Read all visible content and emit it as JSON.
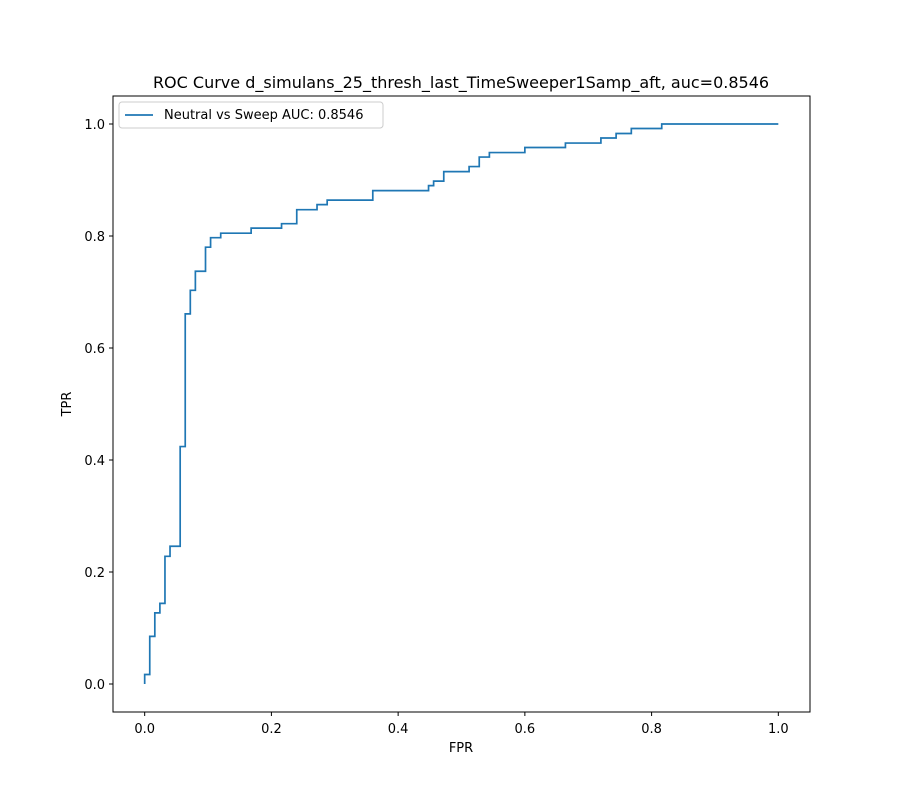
{
  "chart_data": {
    "type": "line",
    "title": "ROC Curve d_simulans_25_thresh_last_TimeSweeper1Samp_aft, auc=0.8546",
    "xlabel": "FPR",
    "ylabel": "TPR",
    "xlim": [
      -0.05,
      1.05
    ],
    "ylim": [
      -0.05,
      1.05
    ],
    "xticks": [
      0.0,
      0.2,
      0.4,
      0.6,
      0.8,
      1.0
    ],
    "yticks": [
      0.0,
      0.2,
      0.4,
      0.6,
      0.8,
      1.0
    ],
    "xtick_labels": [
      "0.0",
      "0.2",
      "0.4",
      "0.6",
      "0.8",
      "1.0"
    ],
    "ytick_labels": [
      "0.0",
      "0.2",
      "0.4",
      "0.6",
      "0.8",
      "1.0"
    ],
    "grid": false,
    "legend": {
      "placement": "upper-left",
      "entries": [
        "Neutral vs Sweep AUC: 0.8546"
      ]
    },
    "series": [
      {
        "name": "Neutral vs Sweep AUC: 0.8546",
        "color": "#1f77b4",
        "x": [
          0.0,
          0.0,
          0.008,
          0.008,
          0.016,
          0.016,
          0.024,
          0.024,
          0.032,
          0.032,
          0.04,
          0.04,
          0.056,
          0.056,
          0.064,
          0.064,
          0.072,
          0.072,
          0.08,
          0.08,
          0.096,
          0.096,
          0.104,
          0.104,
          0.12,
          0.12,
          0.168,
          0.168,
          0.216,
          0.216,
          0.24,
          0.24,
          0.272,
          0.272,
          0.288,
          0.288,
          0.36,
          0.36,
          0.448,
          0.448,
          0.456,
          0.456,
          0.472,
          0.472,
          0.512,
          0.512,
          0.528,
          0.528,
          0.544,
          0.544,
          0.6,
          0.6,
          0.664,
          0.664,
          0.72,
          0.72,
          0.744,
          0.744,
          0.768,
          0.768,
          0.816,
          0.816,
          0.976,
          0.976,
          1.0
        ],
        "y": [
          0.0,
          0.017,
          0.017,
          0.085,
          0.085,
          0.127,
          0.127,
          0.144,
          0.144,
          0.228,
          0.228,
          0.246,
          0.246,
          0.424,
          0.424,
          0.661,
          0.661,
          0.703,
          0.703,
          0.737,
          0.737,
          0.78,
          0.78,
          0.797,
          0.797,
          0.805,
          0.805,
          0.814,
          0.814,
          0.822,
          0.822,
          0.847,
          0.847,
          0.856,
          0.856,
          0.864,
          0.864,
          0.881,
          0.881,
          0.89,
          0.89,
          0.898,
          0.898,
          0.915,
          0.915,
          0.924,
          0.924,
          0.941,
          0.941,
          0.949,
          0.949,
          0.958,
          0.958,
          0.966,
          0.966,
          0.975,
          0.975,
          0.983,
          0.983,
          0.992,
          0.992,
          1.0,
          1.0,
          1.0,
          1.0
        ]
      }
    ]
  }
}
